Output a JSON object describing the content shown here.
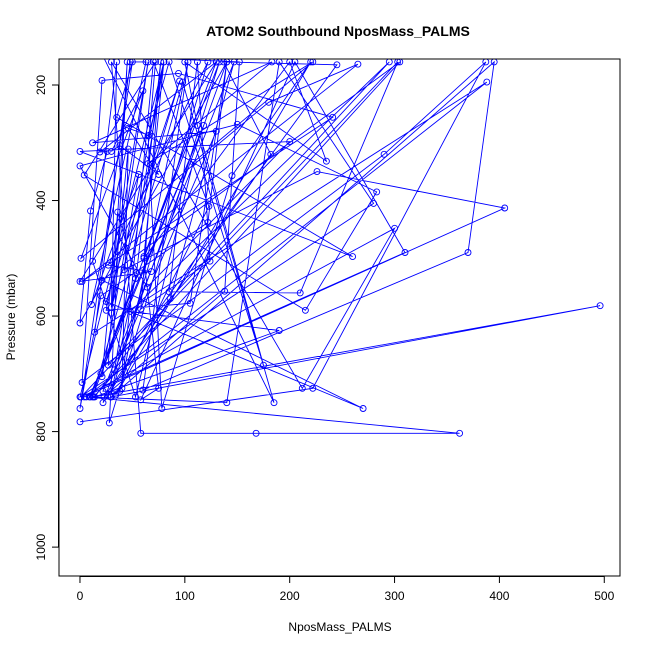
{
  "chart_data": {
    "type": "line",
    "title": "ATOM2 Southbound NposMass_PALMS",
    "xlabel": "NposMass_PALMS",
    "ylabel": "Pressure (mbar)",
    "xlim": [
      -20,
      515
    ],
    "ylim": [
      1050,
      155
    ],
    "y_reversed": true,
    "x_ticks": [
      0,
      100,
      200,
      300,
      400,
      500
    ],
    "y_ticks": [
      200,
      400,
      600,
      800,
      1000
    ],
    "series_color": "#0000ff",
    "marker": "open-circle",
    "series": [
      {
        "values": [
          [
            0,
            783
          ],
          [
            222,
            725
          ],
          [
            387,
            160
          ],
          [
            290,
            320
          ],
          [
            2,
            715
          ],
          [
            21,
            192
          ],
          [
            94,
            180
          ],
          [
            241,
            256
          ],
          [
            2,
            540
          ],
          [
            265,
            164
          ],
          [
            180,
            230
          ],
          [
            1,
            500
          ],
          [
            60,
            210
          ],
          [
            30,
            315
          ],
          [
            38,
            305
          ],
          [
            75,
            355
          ],
          [
            46,
            275
          ],
          [
            66,
            287
          ],
          [
            72,
            160
          ],
          [
            4,
            356
          ],
          [
            215,
            590
          ],
          [
            283,
            385
          ],
          [
            150,
            268
          ],
          [
            0,
            340
          ],
          [
            64,
            550
          ],
          [
            200,
            298
          ],
          [
            0,
            315
          ],
          [
            260,
            497
          ],
          [
            35,
            256
          ],
          [
            50,
            160
          ],
          [
            0,
            760
          ],
          [
            20,
            565
          ],
          [
            122,
            438
          ],
          [
            140,
            160
          ],
          [
            0,
            612
          ],
          [
            10,
            418
          ],
          [
            26,
            315
          ],
          [
            19,
            316
          ],
          [
            130,
            160
          ],
          [
            0,
            540
          ],
          [
            68,
            523
          ],
          [
            27,
            512
          ],
          [
            122,
            160
          ],
          [
            29,
            740
          ],
          [
            54,
            525
          ],
          [
            77,
            160
          ],
          [
            58,
            588
          ],
          [
            124,
            505
          ],
          [
            112,
            160
          ],
          [
            85,
            558
          ],
          [
            210,
            560
          ],
          [
            303,
            160
          ],
          [
            1,
            740
          ],
          [
            310,
            490
          ],
          [
            205,
            160
          ],
          [
            58,
            745
          ],
          [
            75,
            725
          ],
          [
            61,
            500
          ],
          [
            200,
            160
          ],
          [
            235,
            332
          ],
          [
            100,
            160
          ],
          [
            112,
            270
          ],
          [
            175,
            685
          ],
          [
            85,
            160
          ],
          [
            65,
            288
          ],
          [
            78,
            760
          ],
          [
            145,
            357
          ],
          [
            220,
            160
          ],
          [
            34,
            737
          ],
          [
            123,
            410
          ],
          [
            70,
            160
          ],
          [
            40,
            725
          ],
          [
            46,
            311
          ],
          [
            30,
            595
          ],
          [
            65,
            160
          ],
          [
            25,
            590
          ],
          [
            105,
            578
          ],
          [
            140,
            160
          ],
          [
            22,
            750
          ],
          [
            86,
            570
          ],
          [
            147,
            160
          ],
          [
            22,
            730
          ],
          [
            38,
            730
          ],
          [
            103,
            160
          ],
          [
            60,
            728
          ],
          [
            370,
            490
          ],
          [
            395,
            160
          ],
          [
            30,
            740
          ],
          [
            496,
            582
          ],
          [
            13,
            740
          ],
          [
            305,
            160
          ],
          [
            21,
            538
          ],
          [
            270,
            760
          ],
          [
            25,
            575
          ],
          [
            95,
            193
          ],
          [
            30,
            585
          ],
          [
            35,
            160
          ],
          [
            12,
            505
          ],
          [
            53,
            740
          ],
          [
            108,
            334
          ],
          [
            222,
            160
          ],
          [
            65,
            336
          ],
          [
            183,
            160
          ],
          [
            12,
            300
          ],
          [
            130,
            280
          ],
          [
            33,
            693
          ],
          [
            80,
            160
          ],
          [
            42,
            520
          ],
          [
            226,
            350
          ],
          [
            405,
            413
          ],
          [
            4,
            740
          ],
          [
            300,
            448
          ],
          [
            212,
            725
          ],
          [
            30,
            160
          ],
          [
            58,
            803
          ],
          [
            168,
            803
          ],
          [
            362,
            803
          ],
          [
            6,
            740
          ],
          [
            388,
            195
          ],
          [
            14,
            628
          ],
          [
            48,
            160
          ],
          [
            63,
            160
          ],
          [
            11,
            580
          ],
          [
            56,
            355
          ],
          [
            21,
            705
          ],
          [
            36,
            420
          ],
          [
            53,
            535
          ],
          [
            10,
            740
          ],
          [
            133,
            160
          ],
          [
            28,
            785
          ],
          [
            45,
            160
          ],
          [
            27,
            685
          ],
          [
            295,
            160
          ],
          [
            48,
            592
          ],
          [
            190,
            625
          ],
          [
            14,
            740
          ],
          [
            245,
            165
          ],
          [
            137,
            160
          ],
          [
            182,
            320
          ],
          [
            23,
            740
          ],
          [
            138,
            557
          ],
          [
            152,
            160
          ],
          [
            22,
            150
          ],
          [
            185,
            750
          ],
          [
            98,
            195
          ],
          [
            12,
            740
          ],
          [
            130,
            160
          ],
          [
            61,
            497
          ],
          [
            80,
            160
          ],
          [
            0,
            740
          ],
          [
            280,
            405
          ],
          [
            190,
            160
          ],
          [
            140,
            750
          ],
          [
            9,
            740
          ],
          [
            118,
            270
          ],
          [
            20,
            700
          ]
        ]
      }
    ]
  }
}
